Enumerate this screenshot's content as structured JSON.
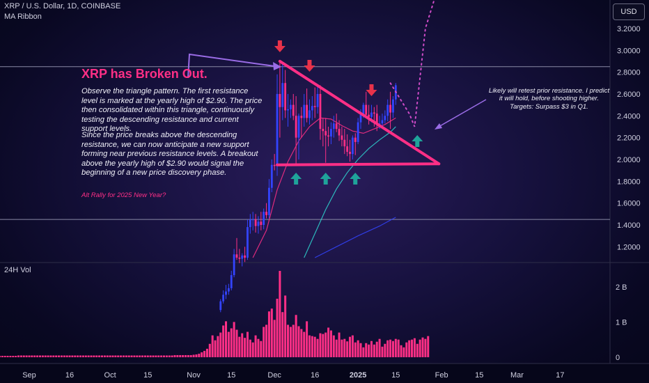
{
  "header": {
    "symbol_line": "XRP / U.S. Dollar, 1D, COINBASE",
    "indicator_name": "MA Ribbon",
    "currency_button": "USD",
    "volume_label": "24H Vol"
  },
  "annotations": {
    "title": "XRP has Broken Out.",
    "paragraph1": "Observe the triangle pattern. The first resistance level is marked at the yearly high of $2.90. The price then consolidated within this triangle, continuously testing the descending resistance and current support levels.",
    "paragraph2": "Since the price breaks above the descending resistance, we can now anticipate a new support forming near previous resistance levels. A breakout above the yearly high of $2.90 would signal the beginning of a new price discovery phase.",
    "alt_note": "Alt Rally for 2025 New Year?",
    "retest_note": "Likely will retest prior resistance. I predict it will hold, before shooting higher. Targets: Surpass $3 in Q1."
  },
  "colors": {
    "up_candle": "#3344ff",
    "down_candle": "#ff2f86",
    "volume_bar": "#ff2f86",
    "pattern_line": "#ff2f86",
    "ma_fast": "#ff2f86",
    "ma_mid": "#2fd6d0",
    "ma_slow": "#3344ff",
    "arrow_down": "#e8324a",
    "arrow_up": "#1fa39a",
    "callout_arrow": "#9a6ce6",
    "level_line": "#8a8aa6"
  },
  "chart_data": {
    "type": "candlestick",
    "title": "XRP / U.S. Dollar, 1D, COINBASE",
    "x_tick_labels": [
      "Sep",
      "16",
      "Oct",
      "15",
      "Nov",
      "15",
      "Dec",
      "16",
      "2025",
      "15",
      "Feb",
      "15",
      "Mar",
      "17"
    ],
    "y_tick_labels": [
      "3.2000",
      "3.0000",
      "2.8000",
      "2.6000",
      "2.4000",
      "2.2000",
      "2.0000",
      "1.8000",
      "1.6000",
      "1.4000",
      "1.2000"
    ],
    "ylim": [
      1.1,
      3.41
    ],
    "volume_tick_labels": [
      "2 B",
      "1 B",
      "0"
    ],
    "volume_ylim": [
      0,
      2.45
    ],
    "horizontal_levels": [
      2.85,
      1.45
    ],
    "triangle": {
      "resistance": [
        [
          "2024-12-03",
          2.9
        ],
        [
          "2025-01-31",
          1.96
        ]
      ],
      "support": [
        [
          "2024-12-02",
          1.95
        ],
        [
          "2025-01-31",
          1.96
        ]
      ]
    },
    "projection_path": [
      [
        "2025-01-13",
        2.7
      ],
      [
        "2025-01-20",
        2.42
      ],
      [
        "2025-01-22",
        2.3
      ],
      [
        "2025-01-26",
        3.2
      ],
      [
        "2025-01-31",
        3.6
      ]
    ],
    "arrows_down_dates": [
      "2024-12-03",
      "2024-12-14",
      "2025-01-06"
    ],
    "arrows_up_dates": [
      "2024-12-09",
      "2024-12-20",
      "2024-12-31",
      "2025-01-23"
    ],
    "ohlc_series": {
      "name": "XRP/USD",
      "dates": [
        "2024-11-11",
        "2024-11-12",
        "2024-11-13",
        "2024-11-14",
        "2024-11-15",
        "2024-11-16",
        "2024-11-17",
        "2024-11-18",
        "2024-11-19",
        "2024-11-20",
        "2024-11-21",
        "2024-11-22",
        "2024-11-23",
        "2024-11-24",
        "2024-11-25",
        "2024-11-26",
        "2024-11-27",
        "2024-11-28",
        "2024-11-29",
        "2024-11-30",
        "2024-12-01",
        "2024-12-02",
        "2024-12-03",
        "2024-12-04",
        "2024-12-05",
        "2024-12-06",
        "2024-12-07",
        "2024-12-08",
        "2024-12-09",
        "2024-12-10",
        "2024-12-11",
        "2024-12-12",
        "2024-12-13",
        "2024-12-14",
        "2024-12-15",
        "2024-12-16",
        "2024-12-17",
        "2024-12-18",
        "2024-12-19",
        "2024-12-20",
        "2024-12-21",
        "2024-12-22",
        "2024-12-23",
        "2024-12-24",
        "2024-12-25",
        "2024-12-26",
        "2024-12-27",
        "2024-12-28",
        "2024-12-29",
        "2024-12-30",
        "2024-12-31",
        "2025-01-01",
        "2025-01-02",
        "2025-01-03",
        "2025-01-04",
        "2025-01-05",
        "2025-01-06",
        "2025-01-07",
        "2025-01-08",
        "2025-01-09",
        "2025-01-10",
        "2025-01-11",
        "2025-01-12",
        "2025-01-13",
        "2025-01-14",
        "2025-01-15"
      ],
      "open": [
        0.62,
        0.7,
        0.76,
        0.79,
        0.82,
        0.94,
        1.13,
        1.1,
        1.09,
        1.12,
        1.1,
        1.38,
        1.45,
        1.45,
        1.39,
        1.43,
        1.4,
        1.52,
        1.49,
        1.74,
        1.95,
        1.94,
        2.6,
        2.48,
        2.7,
        2.45,
        2.46,
        2.5,
        2.4,
        2.2,
        2.4,
        2.38,
        2.5,
        2.38,
        2.45,
        2.49,
        2.48,
        2.6,
        2.28,
        2.26,
        2.22,
        2.21,
        2.28,
        2.33,
        2.28,
        2.22,
        2.18,
        2.12,
        2.07,
        2.05,
        2.2,
        2.16,
        2.34,
        2.41,
        2.5,
        2.41,
        2.39,
        2.43,
        2.42,
        2.33,
        2.33,
        2.36,
        2.4,
        2.5,
        2.43,
        2.55
      ],
      "high": [
        0.72,
        0.8,
        0.85,
        0.86,
        0.98,
        1.18,
        1.28,
        1.18,
        1.14,
        1.2,
        1.45,
        1.5,
        1.52,
        1.5,
        1.48,
        1.52,
        1.55,
        1.6,
        1.82,
        2.0,
        2.05,
        2.78,
        2.9,
        2.88,
        2.82,
        2.6,
        2.55,
        2.6,
        2.58,
        2.42,
        2.48,
        2.6,
        2.65,
        2.55,
        2.58,
        2.66,
        2.68,
        2.68,
        2.38,
        2.38,
        2.3,
        2.34,
        2.4,
        2.42,
        2.36,
        2.3,
        2.28,
        2.23,
        2.18,
        2.22,
        2.24,
        2.38,
        2.46,
        2.52,
        2.62,
        2.5,
        2.5,
        2.48,
        2.5,
        2.4,
        2.42,
        2.45,
        2.55,
        2.62,
        2.58,
        2.7
      ],
      "low": [
        0.6,
        0.68,
        0.72,
        0.76,
        0.8,
        0.92,
        1.08,
        1.05,
        1.02,
        1.06,
        1.08,
        1.32,
        1.35,
        1.33,
        1.32,
        1.35,
        1.36,
        1.46,
        1.46,
        1.7,
        1.9,
        1.85,
        2.2,
        2.36,
        2.38,
        2.3,
        2.38,
        2.36,
        1.96,
        2.0,
        2.2,
        2.3,
        2.34,
        2.32,
        2.36,
        2.38,
        2.42,
        2.18,
        2.12,
        1.97,
        2.12,
        2.14,
        2.2,
        2.25,
        2.17,
        2.12,
        2.05,
        2.03,
        1.98,
        2.0,
        2.04,
        2.14,
        2.28,
        2.38,
        2.38,
        2.32,
        2.34,
        2.3,
        2.26,
        2.28,
        2.28,
        2.33,
        2.35,
        2.28,
        2.38,
        2.5
      ],
      "close": [
        0.7,
        0.76,
        0.79,
        0.82,
        0.94,
        1.13,
        1.1,
        1.09,
        1.12,
        1.1,
        1.38,
        1.45,
        1.45,
        1.39,
        1.43,
        1.4,
        1.52,
        1.49,
        1.74,
        1.95,
        1.94,
        2.6,
        2.48,
        2.7,
        2.45,
        2.46,
        2.5,
        2.4,
        2.2,
        2.4,
        2.38,
        2.5,
        2.38,
        2.45,
        2.49,
        2.48,
        2.6,
        2.28,
        2.26,
        2.22,
        2.21,
        2.28,
        2.33,
        2.28,
        2.22,
        2.18,
        2.12,
        2.07,
        2.05,
        2.2,
        2.16,
        2.34,
        2.41,
        2.5,
        2.41,
        2.39,
        2.43,
        2.42,
        2.33,
        2.33,
        2.36,
        2.4,
        2.5,
        2.43,
        2.55,
        2.68
      ]
    },
    "ma_series": [
      {
        "dates": [
          "2024-11-23",
          "2024-11-28",
          "2024-12-02",
          "2024-12-06",
          "2024-12-10",
          "2024-12-14",
          "2024-12-18",
          "2024-12-22",
          "2024-12-26",
          "2024-12-30",
          "2025-01-03",
          "2025-01-07",
          "2025-01-11",
          "2025-01-15"
        ],
        "values": [
          1.1,
          1.35,
          1.72,
          1.98,
          2.17,
          2.3,
          2.38,
          2.37,
          2.31,
          2.26,
          2.24,
          2.28,
          2.32,
          2.38
        ]
      },
      {
        "dates": [
          "2024-12-12",
          "2024-12-16",
          "2024-12-20",
          "2024-12-24",
          "2024-12-28",
          "2025-01-01",
          "2025-01-05",
          "2025-01-09",
          "2025-01-13",
          "2025-01-15"
        ],
        "values": [
          1.1,
          1.32,
          1.54,
          1.73,
          1.88,
          2.0,
          2.1,
          2.18,
          2.25,
          2.3
        ]
      },
      {
        "dates": [
          "2024-12-16",
          "2024-12-24",
          "2025-01-01",
          "2025-01-09",
          "2025-01-15"
        ],
        "values": [
          1.1,
          1.2,
          1.3,
          1.39,
          1.47
        ]
      }
    ],
    "volume_series": {
      "name": "24H Vol",
      "units": "B",
      "values": [
        0.04,
        0.04,
        0.04,
        0.04,
        0.04,
        0.04,
        0.04,
        0.04,
        0.04,
        0.04,
        0.05,
        0.05,
        0.05,
        0.05,
        0.05,
        0.05,
        0.05,
        0.05,
        0.05,
        0.05,
        0.05,
        0.05,
        0.05,
        0.05,
        0.05,
        0.05,
        0.05,
        0.05,
        0.05,
        0.05,
        0.05,
        0.05,
        0.05,
        0.05,
        0.05,
        0.05,
        0.05,
        0.05,
        0.05,
        0.05,
        0.05,
        0.05,
        0.05,
        0.05,
        0.05,
        0.05,
        0.05,
        0.05,
        0.05,
        0.05,
        0.05,
        0.05,
        0.05,
        0.05,
        0.05,
        0.05,
        0.05,
        0.05,
        0.05,
        0.05,
        0.05,
        0.05,
        0.05,
        0.05,
        0.05,
        0.05,
        0.05,
        0.05,
        0.06,
        0.06,
        0.06,
        0.06,
        0.06,
        0.06,
        0.06,
        0.07,
        0.08,
        0.1,
        0.14,
        0.18,
        0.24,
        0.38,
        0.62,
        0.48,
        0.6,
        0.7,
        0.9,
        1.02,
        0.72,
        0.82,
        1.0,
        0.78,
        0.58,
        0.68,
        0.55,
        0.72,
        0.5,
        0.42,
        0.62,
        0.52,
        0.46,
        0.86,
        0.92,
        1.3,
        1.38,
        1.06,
        1.66,
        2.45,
        1.28,
        1.75,
        0.92,
        0.86,
        0.92,
        1.2,
        0.88,
        0.8,
        0.72,
        1.02,
        0.62,
        0.6,
        0.58,
        0.52,
        0.68,
        0.66,
        0.7,
        0.84,
        0.76,
        0.62,
        0.5,
        0.7,
        0.5,
        0.52,
        0.45,
        0.58,
        0.62,
        0.42,
        0.48,
        0.4,
        0.28,
        0.4,
        0.36,
        0.46,
        0.36,
        0.44,
        0.52,
        0.3,
        0.38,
        0.48,
        0.5,
        0.46,
        0.52,
        0.5,
        0.34,
        0.28,
        0.42,
        0.48,
        0.5,
        0.54,
        0.38,
        0.5,
        0.56,
        0.52,
        0.6
      ]
    },
    "volume_start_date": "2024-08-18"
  }
}
